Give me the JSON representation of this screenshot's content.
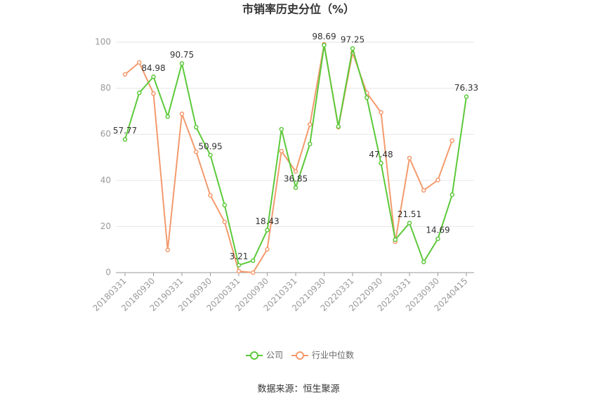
{
  "chart_data": {
    "type": "line",
    "title": "市销率历史分位（%）",
    "categories": [
      "20180331",
      null,
      "20180930",
      null,
      "20190331",
      null,
      "20190930",
      null,
      "20200331",
      null,
      "20200930",
      null,
      "20210331",
      null,
      "20210930",
      null,
      "20220331",
      null,
      "20220930",
      null,
      "20230331",
      null,
      "20230930",
      null,
      "20240415"
    ],
    "series": [
      {
        "name": "公司",
        "color": "#5cc93a",
        "values": [
          57.77,
          78.0,
          84.98,
          67.7,
          90.75,
          63.1,
          50.95,
          29.3,
          3.21,
          5.2,
          18.43,
          62.2,
          36.85,
          55.8,
          98.69,
          63.4,
          97.25,
          75.9,
          47.48,
          14.3,
          21.51,
          4.6,
          14.69,
          33.8,
          76.33
        ]
      },
      {
        "name": "行业中位数",
        "color": "#f39a6d",
        "values": [
          86.0,
          91.2,
          77.7,
          9.8,
          68.9,
          52.4,
          33.5,
          22.0,
          0.6,
          0,
          10.1,
          52.7,
          43.9,
          64.3,
          99.1,
          63.1,
          95.4,
          78.0,
          69.5,
          13.4,
          49.7,
          35.7,
          40.2,
          57.3,
          null
        ]
      }
    ],
    "ylim": [
      0,
      100
    ],
    "yticks": [
      0,
      20,
      40,
      60,
      80,
      100
    ],
    "grid": true,
    "legend": "bottom",
    "source": "数据来源：恒生聚源"
  }
}
